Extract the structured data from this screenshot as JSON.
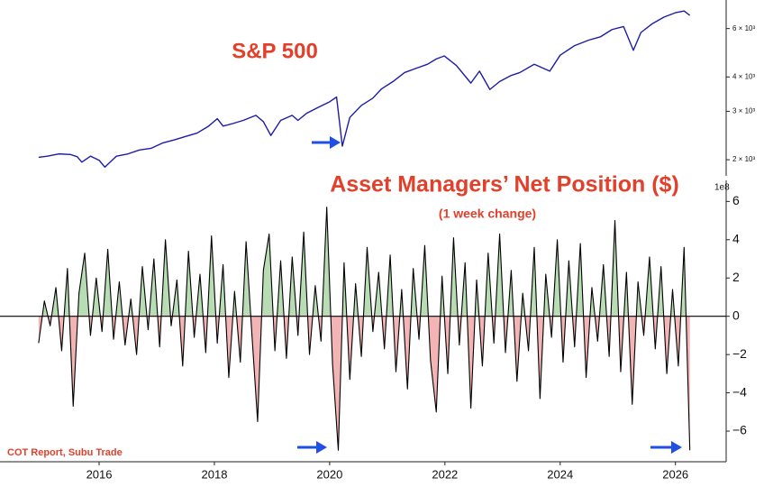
{
  "chart_data": [
    {
      "type": "line",
      "title": "S&P 500",
      "yscale": "log",
      "color": "#1c1ca8",
      "xlim": [
        2014.28,
        2026.88
      ],
      "ylim": [
        1747,
        7620
      ],
      "yticks": [
        {
          "value": 2000,
          "label": "2 × 10³"
        },
        {
          "value": 3000,
          "label": "3 × 10³"
        },
        {
          "value": 4000,
          "label": "4 × 10³"
        },
        {
          "value": 6000,
          "label": "6 × 10³"
        }
      ],
      "x": [
        2014.95,
        2015.1,
        2015.3,
        2015.5,
        2015.62,
        2015.7,
        2015.85,
        2016.0,
        2016.1,
        2016.3,
        2016.5,
        2016.7,
        2016.9,
        2017.1,
        2017.3,
        2017.5,
        2017.7,
        2017.9,
        2018.05,
        2018.15,
        2018.3,
        2018.5,
        2018.72,
        2018.85,
        2018.98,
        2019.15,
        2019.35,
        2019.45,
        2019.6,
        2019.8,
        2020.0,
        2020.12,
        2020.22,
        2020.35,
        2020.55,
        2020.75,
        2020.9,
        2021.1,
        2021.3,
        2021.5,
        2021.7,
        2021.85,
        2021.99,
        2022.2,
        2022.45,
        2022.6,
        2022.78,
        2022.95,
        2023.15,
        2023.3,
        2023.55,
        2023.82,
        2024.0,
        2024.25,
        2024.5,
        2024.7,
        2024.9,
        2025.1,
        2025.27,
        2025.4,
        2025.6,
        2025.8,
        2026.0,
        2026.15,
        2026.25
      ],
      "values": [
        2040,
        2060,
        2100,
        2090,
        2050,
        1960,
        2060,
        1990,
        1880,
        2060,
        2100,
        2170,
        2200,
        2300,
        2360,
        2430,
        2500,
        2650,
        2820,
        2650,
        2700,
        2780,
        2900,
        2750,
        2450,
        2780,
        2900,
        2780,
        2950,
        3100,
        3250,
        3380,
        2240,
        2850,
        3150,
        3350,
        3620,
        3850,
        4150,
        4300,
        4450,
        4650,
        4770,
        4400,
        3800,
        4200,
        3600,
        3850,
        4050,
        4150,
        4450,
        4200,
        4800,
        5200,
        5450,
        5600,
        5950,
        6100,
        5000,
        5800,
        6250,
        6600,
        6850,
        6950,
        6700
      ]
    },
    {
      "type": "area",
      "title": "Asset Managers’ Net Position ($)",
      "subtitle": "(1 week change)",
      "y_multiplier": "1e8",
      "source": "COT Report, Subu Trade",
      "color": "#000000",
      "positive_color": "#b8dcb4",
      "negative_color": "#f2b4b4",
      "xlim": [
        2014.28,
        2026.88
      ],
      "ylim": [
        -7.6,
        7.1
      ],
      "xticks": [
        2016,
        2018,
        2020,
        2022,
        2024,
        2026
      ],
      "yticks": [
        {
          "value": -6,
          "label": "−6"
        },
        {
          "value": -4,
          "label": "−4"
        },
        {
          "value": -2,
          "label": "−2"
        },
        0,
        2,
        4,
        6
      ],
      "x": [
        2014.95,
        2015.05,
        2015.15,
        2015.25,
        2015.35,
        2015.45,
        2015.55,
        2015.65,
        2015.75,
        2015.85,
        2015.95,
        2016.05,
        2016.15,
        2016.25,
        2016.35,
        2016.45,
        2016.55,
        2016.65,
        2016.75,
        2016.85,
        2016.95,
        2017.05,
        2017.15,
        2017.25,
        2017.35,
        2017.45,
        2017.55,
        2017.65,
        2017.75,
        2017.85,
        2017.95,
        2018.05,
        2018.15,
        2018.25,
        2018.35,
        2018.45,
        2018.55,
        2018.65,
        2018.75,
        2018.85,
        2018.95,
        2019.05,
        2019.15,
        2019.25,
        2019.35,
        2019.45,
        2019.55,
        2019.65,
        2019.75,
        2019.85,
        2019.95,
        2020.05,
        2020.15,
        2020.25,
        2020.35,
        2020.45,
        2020.55,
        2020.65,
        2020.75,
        2020.85,
        2020.95,
        2021.05,
        2021.15,
        2021.25,
        2021.35,
        2021.45,
        2021.55,
        2021.65,
        2021.75,
        2021.85,
        2021.95,
        2022.05,
        2022.15,
        2022.25,
        2022.35,
        2022.45,
        2022.55,
        2022.65,
        2022.75,
        2022.85,
        2022.95,
        2023.05,
        2023.15,
        2023.25,
        2023.35,
        2023.45,
        2023.55,
        2023.65,
        2023.75,
        2023.85,
        2023.95,
        2024.05,
        2024.15,
        2024.25,
        2024.35,
        2024.45,
        2024.55,
        2024.65,
        2024.75,
        2024.85,
        2024.95,
        2025.05,
        2025.15,
        2025.25,
        2025.35,
        2025.45,
        2025.55,
        2025.65,
        2025.75,
        2025.85,
        2025.95,
        2026.05,
        2026.15,
        2026.25
      ],
      "values": [
        -1.4,
        0.8,
        -0.5,
        1.5,
        -1.8,
        2.5,
        -4.7,
        1.2,
        3.3,
        -1.0,
        2.0,
        -0.8,
        3.5,
        -1.2,
        1.8,
        -1.5,
        0.9,
        -2.0,
        2.6,
        -0.7,
        3.0,
        -1.6,
        4.0,
        -0.5,
        1.9,
        -2.6,
        3.4,
        -1.1,
        2.2,
        -1.9,
        4.2,
        -1.4,
        2.7,
        -3.2,
        1.3,
        -2.4,
        3.9,
        -0.9,
        -5.5,
        2.4,
        4.3,
        -1.8,
        2.9,
        -2.2,
        3.1,
        -1.0,
        4.4,
        -2.0,
        1.6,
        -1.3,
        5.7,
        -2.5,
        -7.0,
        2.8,
        -3.3,
        1.7,
        -2.1,
        3.6,
        -0.8,
        2.3,
        -1.7,
        3.2,
        -2.9,
        1.4,
        -3.8,
        2.5,
        -1.2,
        3.7,
        -2.3,
        -5.0,
        2.1,
        -3.0,
        4.1,
        -1.5,
        2.8,
        -4.8,
        1.9,
        -2.6,
        3.3,
        -1.4,
        4.3,
        -1.9,
        2.4,
        -3.4,
        1.2,
        -1.8,
        3.6,
        -4.3,
        2.2,
        -1.1,
        4.0,
        -2.4,
        2.9,
        -1.6,
        3.8,
        -3.2,
        1.5,
        -1.3,
        2.7,
        -2.1,
        5.0,
        -2.9,
        2.3,
        -4.6,
        1.8,
        -1.0,
        3.1,
        -1.7,
        2.6,
        -3.0,
        1.4,
        -2.6,
        3.6,
        -7.0
      ]
    }
  ]
}
